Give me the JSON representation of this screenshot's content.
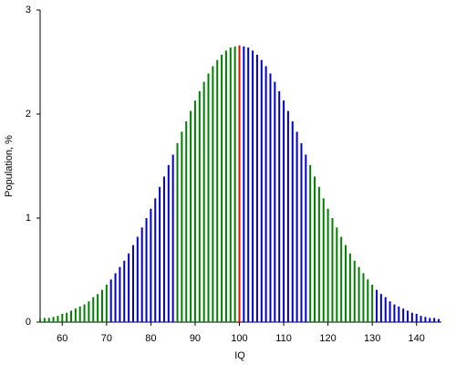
{
  "chart_data": {
    "type": "bar",
    "xlabel": "IQ",
    "ylabel": "Population, %",
    "x": [
      55,
      56,
      57,
      58,
      59,
      60,
      61,
      62,
      63,
      64,
      65,
      66,
      67,
      68,
      69,
      70,
      71,
      72,
      73,
      74,
      75,
      76,
      77,
      78,
      79,
      80,
      81,
      82,
      83,
      84,
      85,
      86,
      87,
      88,
      89,
      90,
      91,
      92,
      93,
      94,
      95,
      96,
      97,
      98,
      99,
      100,
      101,
      102,
      103,
      104,
      105,
      106,
      107,
      108,
      109,
      110,
      111,
      112,
      113,
      114,
      115,
      116,
      117,
      118,
      119,
      120,
      121,
      122,
      123,
      124,
      125,
      126,
      127,
      128,
      129,
      130,
      131,
      132,
      133,
      134,
      135,
      136,
      137,
      138,
      139,
      140,
      141,
      142,
      143,
      144,
      145
    ],
    "values": [
      0.03,
      0.04,
      0.04,
      0.05,
      0.06,
      0.08,
      0.09,
      0.11,
      0.13,
      0.15,
      0.17,
      0.2,
      0.24,
      0.27,
      0.31,
      0.36,
      0.41,
      0.47,
      0.53,
      0.59,
      0.66,
      0.74,
      0.82,
      0.91,
      1.0,
      1.09,
      1.19,
      1.3,
      1.4,
      1.51,
      1.61,
      1.72,
      1.83,
      1.93,
      2.03,
      2.13,
      2.22,
      2.31,
      2.39,
      2.46,
      2.52,
      2.57,
      2.61,
      2.64,
      2.65,
      2.66,
      2.65,
      2.64,
      2.61,
      2.57,
      2.52,
      2.46,
      2.39,
      2.31,
      2.22,
      2.13,
      2.03,
      1.93,
      1.83,
      1.72,
      1.61,
      1.51,
      1.4,
      1.3,
      1.19,
      1.09,
      1.0,
      0.91,
      0.82,
      0.74,
      0.66,
      0.59,
      0.53,
      0.47,
      0.41,
      0.36,
      0.31,
      0.27,
      0.24,
      0.2,
      0.17,
      0.15,
      0.13,
      0.11,
      0.09,
      0.08,
      0.06,
      0.05,
      0.04,
      0.04,
      0.03
    ],
    "colors": [
      "#008000",
      "#008000",
      "#008000",
      "#008000",
      "#008000",
      "#008000",
      "#008000",
      "#008000",
      "#008000",
      "#008000",
      "#008000",
      "#008000",
      "#008000",
      "#008000",
      "#008000",
      "#008000",
      "#0000cc",
      "#0000cc",
      "#0000cc",
      "#0000cc",
      "#0000cc",
      "#0000cc",
      "#0000cc",
      "#0000cc",
      "#0000cc",
      "#0000cc",
      "#0000cc",
      "#0000cc",
      "#0000cc",
      "#0000cc",
      "#0000cc",
      "#008000",
      "#008000",
      "#008000",
      "#008000",
      "#008000",
      "#008000",
      "#008000",
      "#008000",
      "#008000",
      "#008000",
      "#008000",
      "#008000",
      "#008000",
      "#008000",
      "#ff0000",
      "#0000cc",
      "#0000cc",
      "#0000cc",
      "#0000cc",
      "#0000cc",
      "#0000cc",
      "#0000cc",
      "#0000cc",
      "#0000cc",
      "#0000cc",
      "#0000cc",
      "#0000cc",
      "#0000cc",
      "#0000cc",
      "#0000cc",
      "#008000",
      "#008000",
      "#008000",
      "#008000",
      "#008000",
      "#008000",
      "#008000",
      "#008000",
      "#008000",
      "#008000",
      "#008000",
      "#008000",
      "#008000",
      "#008000",
      "#008000",
      "#0000cc",
      "#0000cc",
      "#0000cc",
      "#0000cc",
      "#0000cc",
      "#0000cc",
      "#0000cc",
      "#0000cc",
      "#0000cc",
      "#0000cc",
      "#0000cc",
      "#0000cc",
      "#0000cc",
      "#0000cc",
      "#0000cc"
    ],
    "xlim": [
      55,
      145
    ],
    "xticks": [
      60,
      70,
      80,
      90,
      100,
      110,
      120,
      130,
      140
    ],
    "ylim": [
      0,
      3
    ],
    "yticks": [
      0,
      1,
      2,
      3
    ]
  }
}
